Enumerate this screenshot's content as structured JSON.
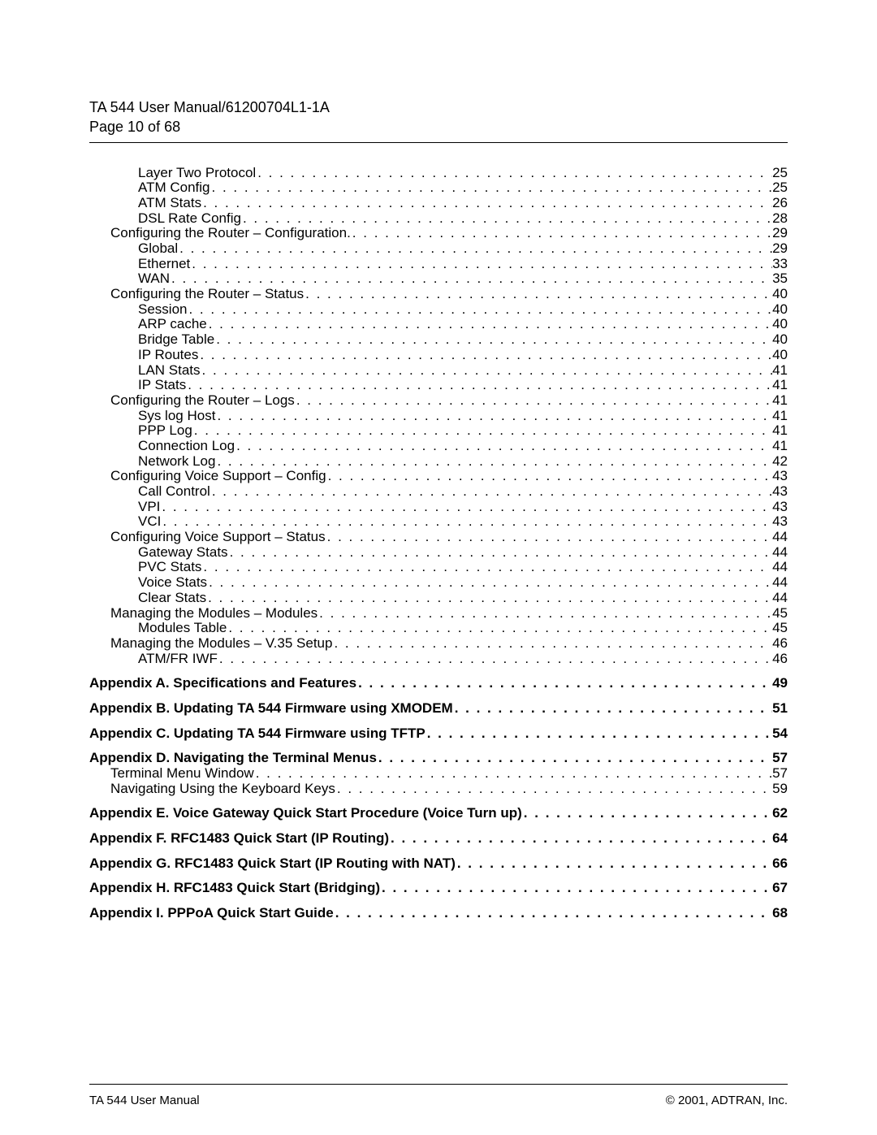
{
  "header": {
    "title": "TA 544 User Manual/61200704L1-1A",
    "page_of": "Page 10 of 68"
  },
  "footer": {
    "left": "TA 544 User Manual",
    "right": "© 2001, ADTRAN, Inc."
  },
  "toc": [
    {
      "label": "Layer Two Protocol",
      "page": "25",
      "indent": 2,
      "bold": false
    },
    {
      "label": "ATM Config",
      "page": "25",
      "indent": 2,
      "bold": false
    },
    {
      "label": "ATM Stats",
      "page": "26",
      "indent": 2,
      "bold": false
    },
    {
      "label": "DSL Rate Config",
      "page": "28",
      "indent": 2,
      "bold": false
    },
    {
      "label": "Configuring the Router – Configuration.",
      "page": " 29",
      "indent": 1,
      "bold": false
    },
    {
      "label": "Global",
      "page": "29",
      "indent": 2,
      "bold": false
    },
    {
      "label": "Ethernet",
      "page": "33",
      "indent": 2,
      "bold": false
    },
    {
      "label": "WAN",
      "page": "35",
      "indent": 2,
      "bold": false
    },
    {
      "label": "Configuring the Router – Status",
      "page": " 40",
      "indent": 1,
      "bold": false
    },
    {
      "label": "Session",
      "page": "40",
      "indent": 2,
      "bold": false
    },
    {
      "label": "ARP cache",
      "page": "40",
      "indent": 2,
      "bold": false
    },
    {
      "label": "Bridge Table",
      "page": "40",
      "indent": 2,
      "bold": false
    },
    {
      "label": "IP Routes",
      "page": "40",
      "indent": 2,
      "bold": false
    },
    {
      "label": "LAN Stats",
      "page": "41",
      "indent": 2,
      "bold": false
    },
    {
      "label": "IP Stats",
      "page": "41",
      "indent": 2,
      "bold": false
    },
    {
      "label": "Configuring the Router – Logs",
      "page": " 41",
      "indent": 1,
      "bold": false
    },
    {
      "label": "Sys log Host",
      "page": "41",
      "indent": 2,
      "bold": false
    },
    {
      "label": "PPP Log",
      "page": "41",
      "indent": 2,
      "bold": false
    },
    {
      "label": "Connection Log",
      "page": "41",
      "indent": 2,
      "bold": false
    },
    {
      "label": "Network Log",
      "page": "42",
      "indent": 2,
      "bold": false
    },
    {
      "label": "Configuring Voice Support – Config",
      "page": " 43",
      "indent": 1,
      "bold": false
    },
    {
      "label": "Call Control",
      "page": "43",
      "indent": 2,
      "bold": false
    },
    {
      "label": "VPI",
      "page": "43",
      "indent": 2,
      "bold": false
    },
    {
      "label": "VCI",
      "page": "43",
      "indent": 2,
      "bold": false
    },
    {
      "label": "Configuring Voice Support – Status",
      "page": " 44",
      "indent": 1,
      "bold": false
    },
    {
      "label": "Gateway Stats",
      "page": "44",
      "indent": 2,
      "bold": false
    },
    {
      "label": "PVC Stats",
      "page": "44",
      "indent": 2,
      "bold": false
    },
    {
      "label": "Voice Stats",
      "page": "44",
      "indent": 2,
      "bold": false
    },
    {
      "label": "Clear Stats",
      "page": "44",
      "indent": 2,
      "bold": false
    },
    {
      "label": "Managing the Modules – Modules",
      "page": " 45",
      "indent": 1,
      "bold": false
    },
    {
      "label": "Modules Table",
      "page": "45",
      "indent": 2,
      "bold": false
    },
    {
      "label": "Managing the Modules – V.35 Setup",
      "page": " 46",
      "indent": 1,
      "bold": false
    },
    {
      "label": "ATM/FR IWF",
      "page": "46",
      "indent": 2,
      "bold": false
    },
    {
      "gap": true
    },
    {
      "label": "Appendix A. Specifications and Features",
      "page": "49",
      "indent": 0,
      "bold": true
    },
    {
      "gap": true
    },
    {
      "label": "Appendix B. Updating TA 544 Firmware using XMODEM",
      "page": "51",
      "indent": 0,
      "bold": true
    },
    {
      "gap": true
    },
    {
      "label": "Appendix C. Updating TA 544 Firmware using TFTP",
      "page": "54",
      "indent": 0,
      "bold": true
    },
    {
      "gap": true
    },
    {
      "label": "Appendix D. Navigating the Terminal Menus",
      "page": "57",
      "indent": 0,
      "bold": true
    },
    {
      "label": "Terminal Menu Window",
      "page": " 57",
      "indent": 1,
      "bold": false
    },
    {
      "label": "Navigating Using the Keyboard Keys",
      "page": " 59",
      "indent": 1,
      "bold": false
    },
    {
      "gap": true
    },
    {
      "label": "Appendix E. Voice Gateway Quick Start Procedure (Voice Turn up)",
      "page": "62",
      "indent": 0,
      "bold": true
    },
    {
      "gap": true
    },
    {
      "label": "Appendix F. RFC1483 Quick Start (IP Routing)",
      "page": "64",
      "indent": 0,
      "bold": true
    },
    {
      "gap": true
    },
    {
      "label": "Appendix G. RFC1483 Quick Start (IP Routing with NAT)",
      "page": "66",
      "indent": 0,
      "bold": true
    },
    {
      "gap": true
    },
    {
      "label": "Appendix H. RFC1483 Quick Start (Bridging)",
      "page": "67",
      "indent": 0,
      "bold": true
    },
    {
      "gap": true
    },
    {
      "label": "Appendix I. PPPoA Quick Start Guide",
      "page": "68",
      "indent": 0,
      "bold": true
    }
  ]
}
